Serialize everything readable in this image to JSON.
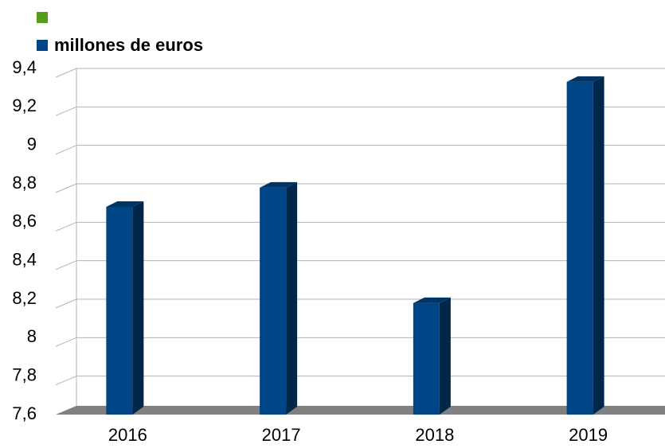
{
  "chart_data": {
    "type": "bar",
    "categories": [
      "2016",
      "2017",
      "2018",
      "2019"
    ],
    "series": [
      {
        "name": null,
        "color": "#579d1c",
        "values": [
          null,
          null,
          null,
          null
        ]
      },
      {
        "name": "millones de euros",
        "color": "#004586",
        "values": [
          8.68,
          8.78,
          8.18,
          9.33
        ]
      }
    ],
    "ylim": [
      7.6,
      9.4
    ],
    "yticks": [
      {
        "value": 7.6,
        "label": "7,6"
      },
      {
        "value": 7.8,
        "label": "7,8"
      },
      8,
      {
        "value": 8.2,
        "label": "8,2"
      },
      {
        "value": 8.4,
        "label": "8,4"
      },
      {
        "value": 8.6,
        "label": "8,6"
      },
      {
        "value": 8.8,
        "label": "8,8"
      },
      9,
      {
        "value": 9.2,
        "label": "9,2"
      },
      {
        "value": 9.4,
        "label": "9,4"
      }
    ],
    "grid": true
  }
}
